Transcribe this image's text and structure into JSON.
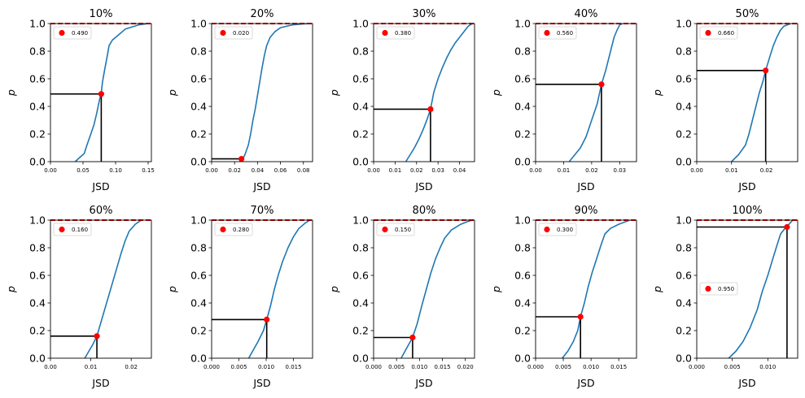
{
  "colors": {
    "cdf": "#1f77b4",
    "marker": "#ff0000",
    "guide": "#000000",
    "ref_line": "#ff0000",
    "axes": "#000000"
  },
  "chart_data": [
    {
      "type": "line",
      "title": "10%",
      "xlabel": "JSD",
      "ylabel": "p",
      "xlim": [
        0,
        0.155
      ],
      "ylim": [
        0,
        1
      ],
      "xticks": [
        0.0,
        0.05,
        0.1,
        0.15
      ],
      "xtick_labels": [
        "0.00",
        "0.05",
        "0.10",
        "0.15"
      ],
      "yticks": [
        0,
        0.2,
        0.4,
        0.6,
        0.8,
        1.0
      ],
      "ytick_labels": [
        "0.0",
        "0.2",
        "0.4",
        "0.6",
        "0.8",
        "1.0"
      ],
      "series": [
        {
          "values": [
            [
              0.038,
              0.0
            ],
            [
              0.045,
              0.03
            ],
            [
              0.052,
              0.06
            ],
            [
              0.056,
              0.12
            ],
            [
              0.062,
              0.2
            ],
            [
              0.067,
              0.27
            ],
            [
              0.071,
              0.35
            ],
            [
              0.075,
              0.44
            ],
            [
              0.078,
              0.5
            ],
            [
              0.08,
              0.58
            ],
            [
              0.083,
              0.66
            ],
            [
              0.087,
              0.76
            ],
            [
              0.09,
              0.84
            ],
            [
              0.095,
              0.88
            ],
            [
              0.105,
              0.92
            ],
            [
              0.115,
              0.96
            ],
            [
              0.135,
              0.99
            ],
            [
              0.15,
              1.0
            ]
          ]
        }
      ],
      "marker": {
        "x": 0.078,
        "y": 0.49,
        "legend_label": "0.490"
      },
      "ref_line_y": 1.0,
      "grid": false,
      "legend_position": "upper left"
    },
    {
      "type": "line",
      "title": "20%",
      "xlabel": "JSD",
      "ylabel": "p",
      "xlim": [
        0,
        0.088
      ],
      "ylim": [
        0,
        1
      ],
      "xticks": [
        0.0,
        0.02,
        0.04,
        0.06,
        0.08
      ],
      "xtick_labels": [
        "0.00",
        "0.02",
        "0.04",
        "0.06",
        "0.08"
      ],
      "yticks": [
        0,
        0.2,
        0.4,
        0.6,
        0.8,
        1.0
      ],
      "ytick_labels": [
        "0.0",
        "0.2",
        "0.4",
        "0.6",
        "0.8",
        "1.0"
      ],
      "series": [
        {
          "values": [
            [
              0.026,
              0.0
            ],
            [
              0.029,
              0.05
            ],
            [
              0.032,
              0.12
            ],
            [
              0.034,
              0.2
            ],
            [
              0.036,
              0.3
            ],
            [
              0.038,
              0.38
            ],
            [
              0.04,
              0.48
            ],
            [
              0.042,
              0.58
            ],
            [
              0.044,
              0.68
            ],
            [
              0.046,
              0.77
            ],
            [
              0.048,
              0.84
            ],
            [
              0.051,
              0.9
            ],
            [
              0.055,
              0.94
            ],
            [
              0.06,
              0.97
            ],
            [
              0.07,
              0.99
            ],
            [
              0.084,
              1.0
            ]
          ]
        }
      ],
      "marker": {
        "x": 0.026,
        "y": 0.02,
        "legend_label": "0.020"
      },
      "ref_line_y": 1.0,
      "grid": false,
      "legend_position": "upper left"
    },
    {
      "type": "line",
      "title": "30%",
      "xlabel": "JSD",
      "ylabel": "p",
      "xlim": [
        0,
        0.047
      ],
      "ylim": [
        0,
        1
      ],
      "xticks": [
        0.0,
        0.01,
        0.02,
        0.03,
        0.04
      ],
      "xtick_labels": [
        "0.00",
        "0.01",
        "0.02",
        "0.03",
        "0.04"
      ],
      "yticks": [
        0,
        0.2,
        0.4,
        0.6,
        0.8,
        1.0
      ],
      "ytick_labels": [
        "0.0",
        "0.2",
        "0.4",
        "0.6",
        "0.8",
        "1.0"
      ],
      "series": [
        {
          "values": [
            [
              0.015,
              0.0
            ],
            [
              0.017,
              0.05
            ],
            [
              0.019,
              0.1
            ],
            [
              0.021,
              0.16
            ],
            [
              0.023,
              0.23
            ],
            [
              0.025,
              0.31
            ],
            [
              0.0265,
              0.38
            ],
            [
              0.028,
              0.5
            ],
            [
              0.03,
              0.6
            ],
            [
              0.032,
              0.68
            ],
            [
              0.034,
              0.75
            ],
            [
              0.036,
              0.81
            ],
            [
              0.038,
              0.86
            ],
            [
              0.04,
              0.9
            ],
            [
              0.042,
              0.94
            ],
            [
              0.044,
              0.98
            ],
            [
              0.046,
              1.0
            ]
          ]
        }
      ],
      "marker": {
        "x": 0.0265,
        "y": 0.38,
        "legend_label": "0.380"
      },
      "ref_line_y": 1.0,
      "grid": false,
      "legend_position": "upper left"
    },
    {
      "type": "line",
      "title": "40%",
      "xlabel": "JSD",
      "ylabel": "p",
      "xlim": [
        0,
        0.036
      ],
      "ylim": [
        0,
        1
      ],
      "xticks": [
        0.0,
        0.01,
        0.02,
        0.03
      ],
      "xtick_labels": [
        "0.00",
        "0.01",
        "0.02",
        "0.03"
      ],
      "yticks": [
        0,
        0.2,
        0.4,
        0.6,
        0.8,
        1.0
      ],
      "ytick_labels": [
        "0.0",
        "0.2",
        "0.4",
        "0.6",
        "0.8",
        "1.0"
      ],
      "series": [
        {
          "values": [
            [
              0.012,
              0.0
            ],
            [
              0.014,
              0.05
            ],
            [
              0.016,
              0.1
            ],
            [
              0.018,
              0.18
            ],
            [
              0.02,
              0.3
            ],
            [
              0.022,
              0.42
            ],
            [
              0.0235,
              0.56
            ],
            [
              0.025,
              0.66
            ],
            [
              0.026,
              0.74
            ],
            [
              0.027,
              0.82
            ],
            [
              0.028,
              0.9
            ],
            [
              0.029,
              0.95
            ],
            [
              0.03,
              0.99
            ],
            [
              0.031,
              1.0
            ]
          ]
        }
      ],
      "marker": {
        "x": 0.0235,
        "y": 0.56,
        "legend_label": "0.560"
      },
      "ref_line_y": 1.0,
      "grid": false,
      "legend_position": "upper left"
    },
    {
      "type": "line",
      "title": "50%",
      "xlabel": "JSD",
      "ylabel": "p",
      "xlim": [
        0,
        0.029
      ],
      "ylim": [
        0,
        1
      ],
      "xticks": [
        0.0,
        0.01,
        0.02
      ],
      "xtick_labels": [
        "0.00",
        "0.01",
        "0.02"
      ],
      "yticks": [
        0,
        0.2,
        0.4,
        0.6,
        0.8,
        1.0
      ],
      "ytick_labels": [
        "0.0",
        "0.2",
        "0.4",
        "0.6",
        "0.8",
        "1.0"
      ],
      "series": [
        {
          "values": [
            [
              0.01,
              0.0
            ],
            [
              0.012,
              0.05
            ],
            [
              0.014,
              0.12
            ],
            [
              0.015,
              0.2
            ],
            [
              0.016,
              0.3
            ],
            [
              0.017,
              0.4
            ],
            [
              0.018,
              0.5
            ],
            [
              0.019,
              0.58
            ],
            [
              0.0198,
              0.66
            ],
            [
              0.021,
              0.76
            ],
            [
              0.022,
              0.84
            ],
            [
              0.023,
              0.9
            ],
            [
              0.024,
              0.95
            ],
            [
              0.025,
              0.98
            ],
            [
              0.027,
              1.0
            ]
          ]
        }
      ],
      "marker": {
        "x": 0.0198,
        "y": 0.66,
        "legend_label": "0.660"
      },
      "ref_line_y": 1.0,
      "grid": false,
      "legend_position": "upper left"
    },
    {
      "type": "line",
      "title": "60%",
      "xlabel": "JSD",
      "ylabel": "p",
      "xlim": [
        0,
        0.025
      ],
      "ylim": [
        0,
        1
      ],
      "xticks": [
        0.0,
        0.01,
        0.02
      ],
      "xtick_labels": [
        "0.00",
        "0.01",
        "0.02"
      ],
      "yticks": [
        0,
        0.2,
        0.4,
        0.6,
        0.8,
        1.0
      ],
      "ytick_labels": [
        "0.0",
        "0.2",
        "0.4",
        "0.6",
        "0.8",
        "1.0"
      ],
      "series": [
        {
          "values": [
            [
              0.0085,
              0.0
            ],
            [
              0.0095,
              0.05
            ],
            [
              0.0105,
              0.1
            ],
            [
              0.0115,
              0.16
            ],
            [
              0.0125,
              0.26
            ],
            [
              0.0135,
              0.36
            ],
            [
              0.0145,
              0.46
            ],
            [
              0.0155,
              0.56
            ],
            [
              0.0165,
              0.66
            ],
            [
              0.0175,
              0.76
            ],
            [
              0.0185,
              0.85
            ],
            [
              0.0195,
              0.92
            ],
            [
              0.021,
              0.97
            ],
            [
              0.0225,
              1.0
            ]
          ]
        }
      ],
      "marker": {
        "x": 0.0115,
        "y": 0.16,
        "legend_label": "0.160"
      },
      "ref_line_y": 1.0,
      "grid": false,
      "legend_position": "upper left"
    },
    {
      "type": "line",
      "title": "70%",
      "xlabel": "JSD",
      "ylabel": "p",
      "xlim": [
        0,
        0.0185
      ],
      "ylim": [
        0,
        1
      ],
      "xticks": [
        0.0,
        0.005,
        0.01,
        0.015
      ],
      "xtick_labels": [
        "0.000",
        "0.005",
        "0.010",
        "0.015"
      ],
      "yticks": [
        0,
        0.2,
        0.4,
        0.6,
        0.8,
        1.0
      ],
      "ytick_labels": [
        "0.0",
        "0.2",
        "0.4",
        "0.6",
        "0.8",
        "1.0"
      ],
      "series": [
        {
          "values": [
            [
              0.0068,
              0.0
            ],
            [
              0.0075,
              0.05
            ],
            [
              0.0085,
              0.12
            ],
            [
              0.0095,
              0.2
            ],
            [
              0.0101,
              0.28
            ],
            [
              0.0108,
              0.38
            ],
            [
              0.0115,
              0.5
            ],
            [
              0.0122,
              0.6
            ],
            [
              0.013,
              0.7
            ],
            [
              0.014,
              0.8
            ],
            [
              0.015,
              0.88
            ],
            [
              0.016,
              0.94
            ],
            [
              0.0172,
              0.98
            ],
            [
              0.018,
              1.0
            ]
          ]
        }
      ],
      "marker": {
        "x": 0.0101,
        "y": 0.28,
        "legend_label": "0.280"
      },
      "ref_line_y": 1.0,
      "grid": false,
      "legend_position": "upper left"
    },
    {
      "type": "line",
      "title": "80%",
      "xlabel": "JSD",
      "ylabel": "p",
      "xlim": [
        0,
        0.022
      ],
      "ylim": [
        0,
        1
      ],
      "xticks": [
        0.0,
        0.005,
        0.01,
        0.015,
        0.02
      ],
      "xtick_labels": [
        "0.000",
        "0.005",
        "0.010",
        "0.015",
        "0.020"
      ],
      "yticks": [
        0,
        0.2,
        0.4,
        0.6,
        0.8,
        1.0
      ],
      "ytick_labels": [
        "0.0",
        "0.2",
        "0.4",
        "0.6",
        "0.8",
        "1.0"
      ],
      "series": [
        {
          "values": [
            [
              0.006,
              0.0
            ],
            [
              0.007,
              0.06
            ],
            [
              0.0085,
              0.15
            ],
            [
              0.0095,
              0.25
            ],
            [
              0.0105,
              0.38
            ],
            [
              0.0115,
              0.5
            ],
            [
              0.0125,
              0.62
            ],
            [
              0.0135,
              0.72
            ],
            [
              0.0145,
              0.8
            ],
            [
              0.0155,
              0.87
            ],
            [
              0.017,
              0.93
            ],
            [
              0.019,
              0.97
            ],
            [
              0.0205,
              0.99
            ],
            [
              0.0215,
              1.0
            ]
          ]
        }
      ],
      "marker": {
        "x": 0.0085,
        "y": 0.15,
        "legend_label": "0.150"
      },
      "ref_line_y": 1.0,
      "grid": false,
      "legend_position": "upper left"
    },
    {
      "type": "line",
      "title": "90%",
      "xlabel": "JSD",
      "ylabel": "p",
      "xlim": [
        0,
        0.0182
      ],
      "ylim": [
        0,
        1
      ],
      "xticks": [
        0.0,
        0.005,
        0.01,
        0.015
      ],
      "xtick_labels": [
        "0.000",
        "0.005",
        "0.010",
        "0.015"
      ],
      "yticks": [
        0,
        0.2,
        0.4,
        0.6,
        0.8,
        1.0
      ],
      "ytick_labels": [
        "0.0",
        "0.2",
        "0.4",
        "0.6",
        "0.8",
        "1.0"
      ],
      "series": [
        {
          "values": [
            [
              0.0048,
              0.0
            ],
            [
              0.0058,
              0.05
            ],
            [
              0.0068,
              0.12
            ],
            [
              0.0076,
              0.2
            ],
            [
              0.0081,
              0.3
            ],
            [
              0.0088,
              0.4
            ],
            [
              0.0095,
              0.52
            ],
            [
              0.0102,
              0.62
            ],
            [
              0.011,
              0.72
            ],
            [
              0.0118,
              0.82
            ],
            [
              0.0125,
              0.9
            ],
            [
              0.0135,
              0.94
            ],
            [
              0.015,
              0.97
            ],
            [
              0.017,
              1.0
            ]
          ]
        }
      ],
      "marker": {
        "x": 0.0081,
        "y": 0.3,
        "legend_label": "0.300"
      },
      "ref_line_y": 1.0,
      "grid": false,
      "legend_position": "upper left"
    },
    {
      "type": "line",
      "title": "100%",
      "xlabel": "JSD",
      "ylabel": "p",
      "xlim": [
        0,
        0.0142
      ],
      "ylim": [
        0,
        1
      ],
      "xticks": [
        0.0,
        0.005,
        0.01
      ],
      "xtick_labels": [
        "0.000",
        "0.005",
        "0.010"
      ],
      "yticks": [
        0,
        0.2,
        0.4,
        0.6,
        0.8,
        1.0
      ],
      "ytick_labels": [
        "0.0",
        "0.2",
        "0.4",
        "0.6",
        "0.8",
        "1.0"
      ],
      "series": [
        {
          "values": [
            [
              0.0045,
              0.0
            ],
            [
              0.0055,
              0.05
            ],
            [
              0.0065,
              0.12
            ],
            [
              0.0075,
              0.22
            ],
            [
              0.0085,
              0.35
            ],
            [
              0.0092,
              0.48
            ],
            [
              0.01,
              0.6
            ],
            [
              0.0107,
              0.72
            ],
            [
              0.0113,
              0.82
            ],
            [
              0.0118,
              0.9
            ],
            [
              0.0124,
              0.94
            ],
            [
              0.0128,
              0.96
            ],
            [
              0.0135,
              1.0
            ]
          ]
        }
      ],
      "marker": {
        "x": 0.0127,
        "y": 0.95,
        "legend_label": "0.950"
      },
      "ref_line_y": 1.0,
      "grid": false,
      "legend_position": "center left"
    }
  ]
}
